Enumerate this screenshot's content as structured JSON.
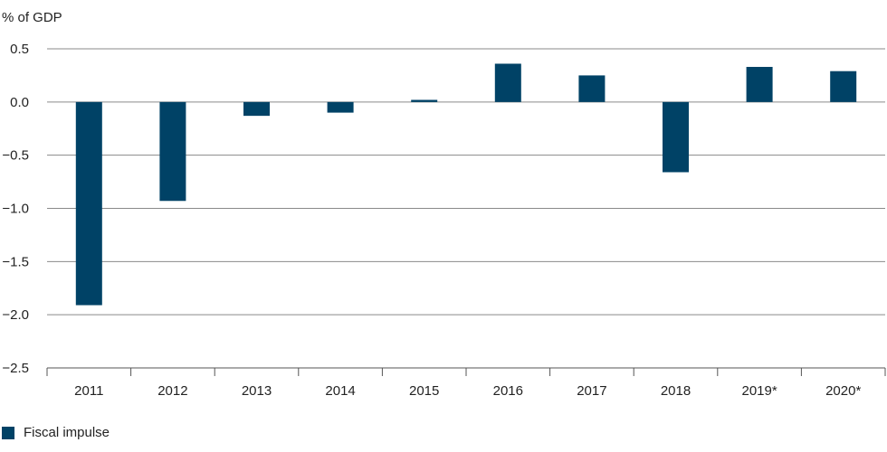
{
  "chart_data": {
    "type": "bar",
    "ylabel": "% of GDP",
    "categories": [
      "2011",
      "2012",
      "2013",
      "2014",
      "2015",
      "2016",
      "2017",
      "2018",
      "2019*",
      "2020*"
    ],
    "series": [
      {
        "name": "Fiscal impulse",
        "values": [
          -1.91,
          -0.93,
          -0.13,
          -0.1,
          0.02,
          0.36,
          0.25,
          -0.66,
          0.33,
          0.29
        ]
      }
    ],
    "ylim": [
      -2.5,
      0.5
    ],
    "yticks": [
      "0.5",
      "0.0",
      "−0.5",
      "−1.0",
      "−1.5",
      "−2.0",
      "−2.5"
    ],
    "ytick_values": [
      0.5,
      0,
      -0.5,
      -1.0,
      -1.5,
      -2.0,
      -2.5
    ],
    "grid": true,
    "legend_position": "bottom-left",
    "colors": {
      "bar": "#004266",
      "grid": "#8a8a8a",
      "axis": "#555555"
    }
  }
}
